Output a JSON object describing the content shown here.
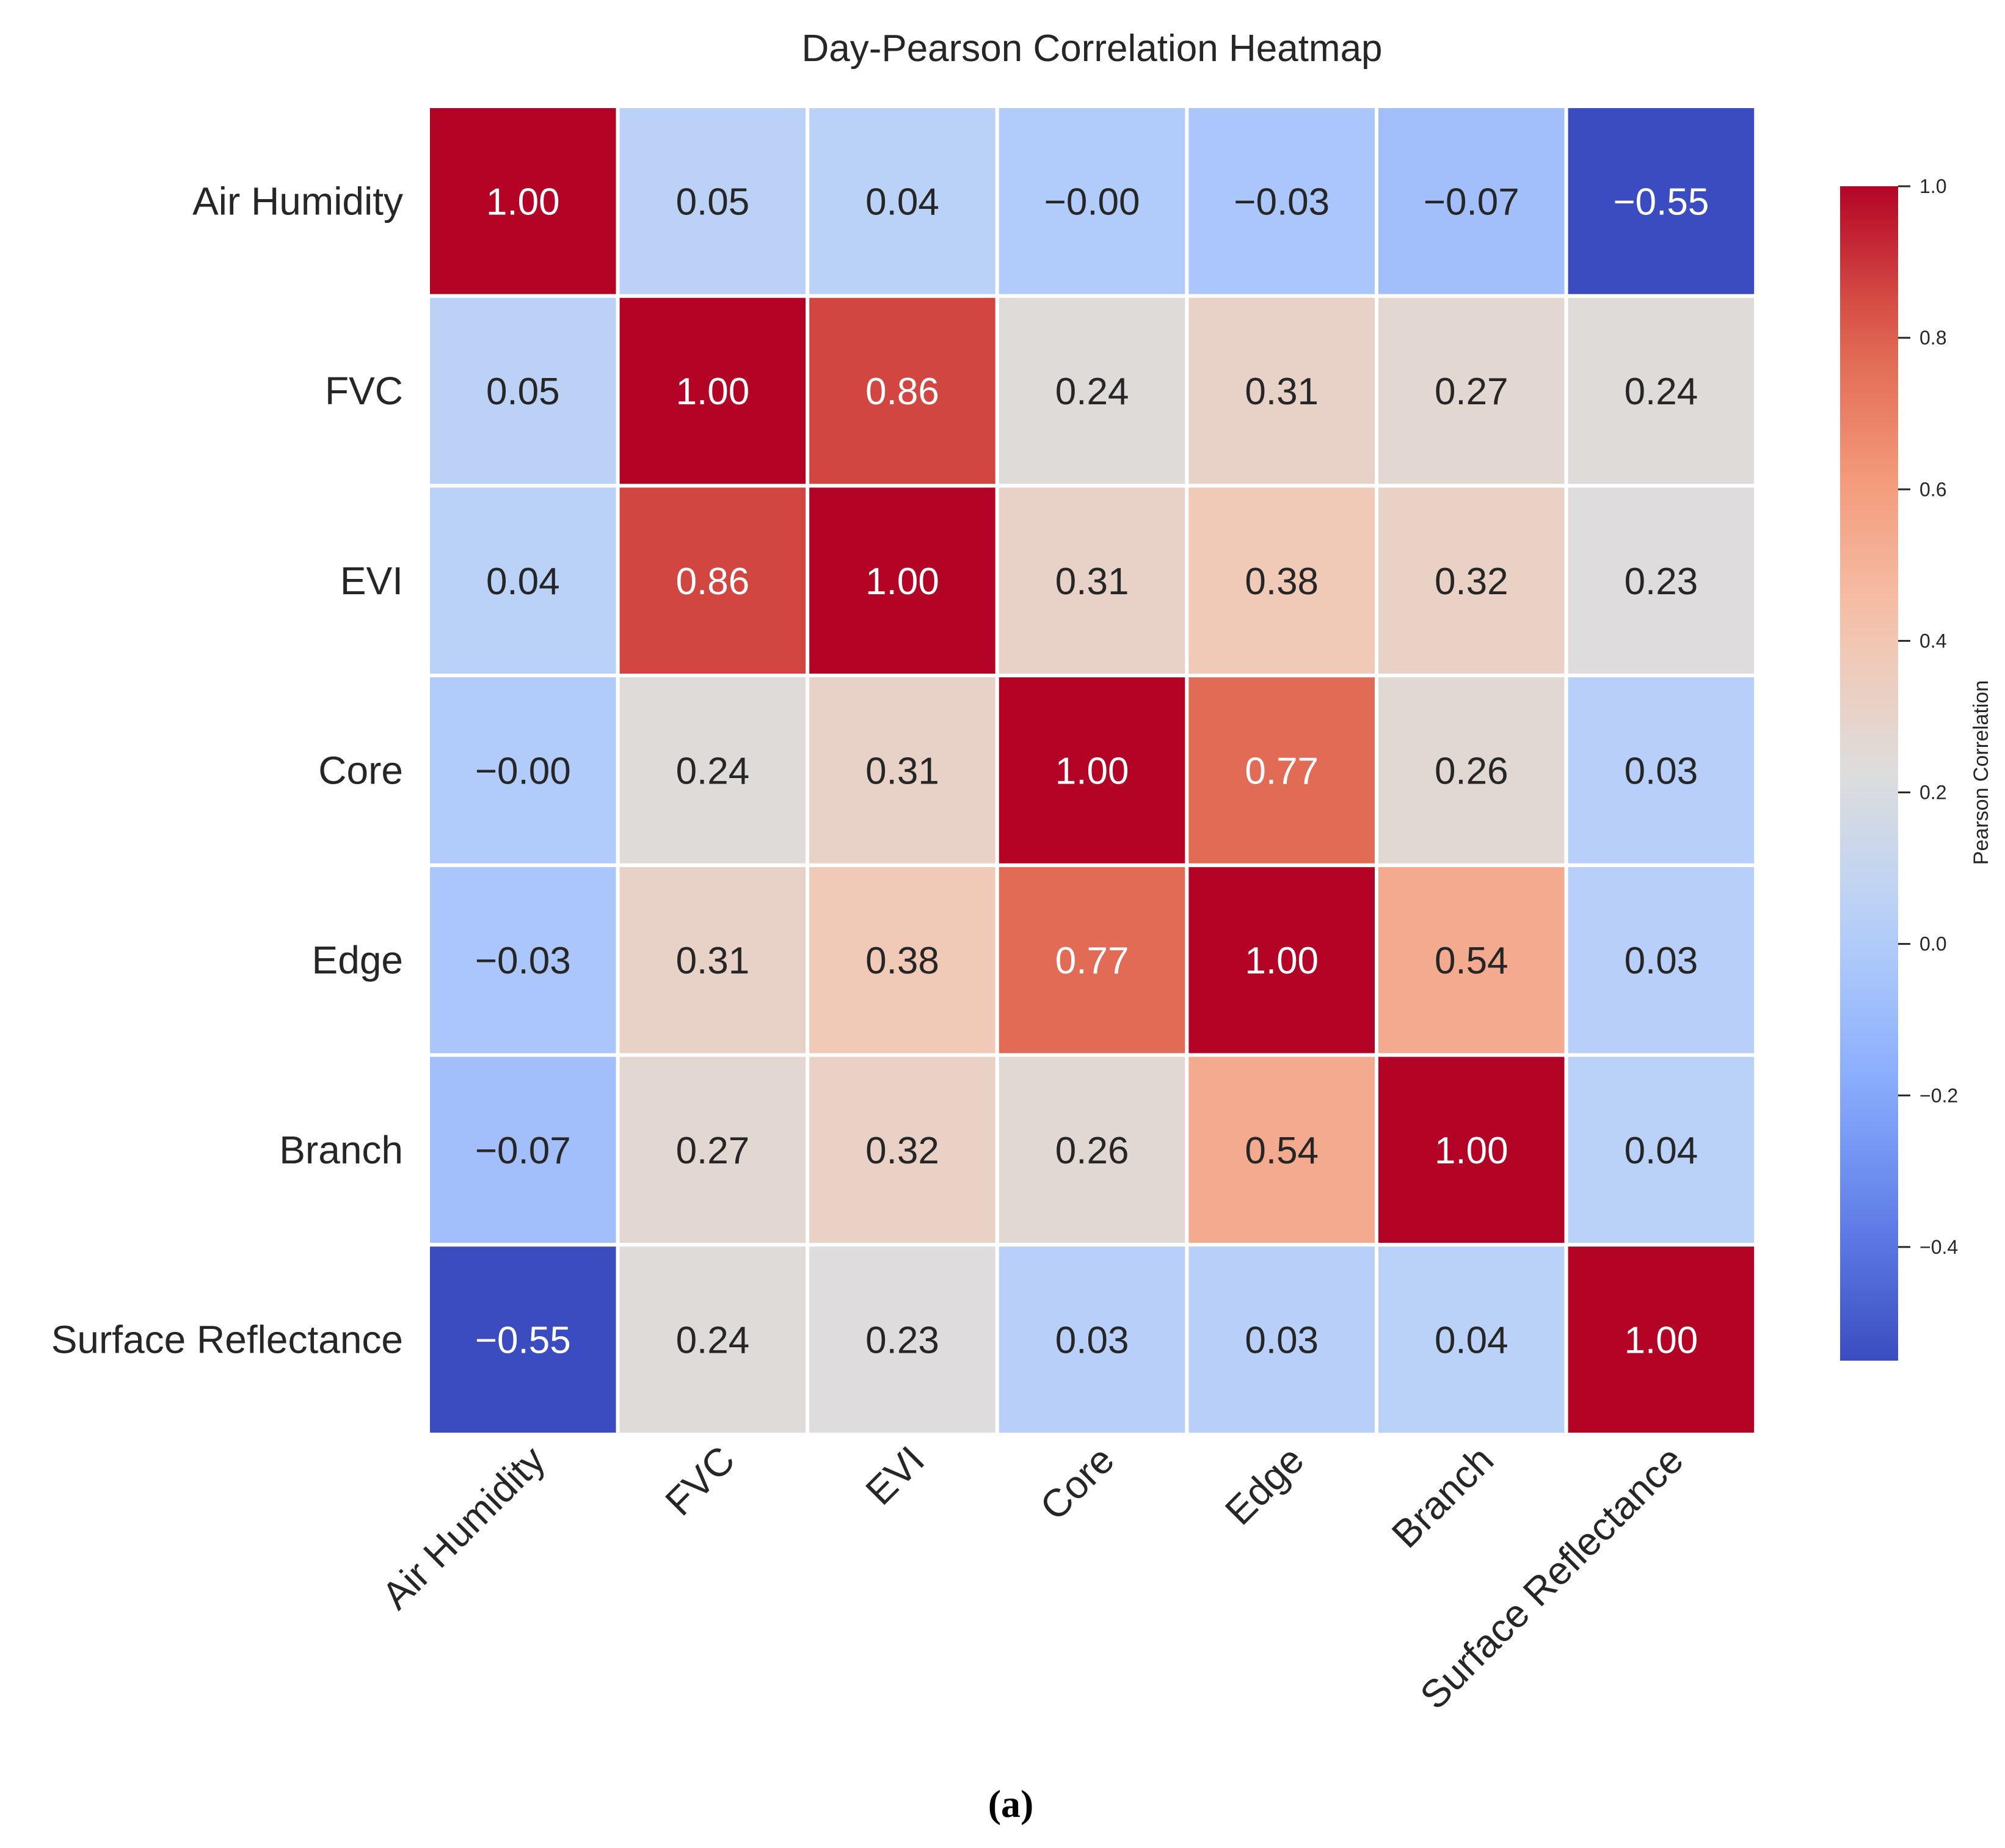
{
  "chart_data": {
    "type": "heatmap",
    "title": "Day-Pearson Correlation Heatmap",
    "row_labels": [
      "Air Humidity",
      "FVC",
      "EVI",
      "Core",
      "Edge",
      "Branch",
      "Surface Reflectance"
    ],
    "col_labels": [
      "Air Humidity",
      "FVC",
      "EVI",
      "Core",
      "Edge",
      "Branch",
      "Surface Reflectance"
    ],
    "values": [
      [
        1.0,
        0.05,
        0.04,
        -0.0,
        -0.03,
        -0.07,
        -0.55
      ],
      [
        0.05,
        1.0,
        0.86,
        0.24,
        0.31,
        0.27,
        0.24
      ],
      [
        0.04,
        0.86,
        1.0,
        0.31,
        0.38,
        0.32,
        0.23
      ],
      [
        -0.0,
        0.24,
        0.31,
        1.0,
        0.77,
        0.26,
        0.03
      ],
      [
        -0.03,
        0.31,
        0.38,
        0.77,
        1.0,
        0.54,
        0.03
      ],
      [
        -0.07,
        0.27,
        0.32,
        0.26,
        0.54,
        1.0,
        0.04
      ],
      [
        -0.55,
        0.24,
        0.23,
        0.03,
        0.03,
        0.04,
        1.0
      ]
    ],
    "value_format": "2 decimals",
    "colormap": "coolwarm",
    "vmin": -0.55,
    "vmax": 1.0,
    "colorbar": {
      "label": "Pearson Correlation",
      "ticks": [
        1.0,
        0.8,
        0.6,
        0.4,
        0.2,
        0.0,
        -0.2,
        -0.4
      ],
      "tick_labels": [
        "1.0",
        "0.8",
        "0.6",
        "0.4",
        "0.2",
        "0.0",
        "−0.2",
        "−0.4"
      ],
      "placement": "right"
    },
    "caption": "(a)"
  },
  "colors": {
    "text_dark": "#262626",
    "text_light": "#ffffff",
    "cmap_stops": [
      "#3b4cc0",
      "#6282ea",
      "#8db0fe",
      "#b8d0f9",
      "#dddddd",
      "#f5c4ad",
      "#f49a7b",
      "#de604d",
      "#b40426"
    ]
  }
}
